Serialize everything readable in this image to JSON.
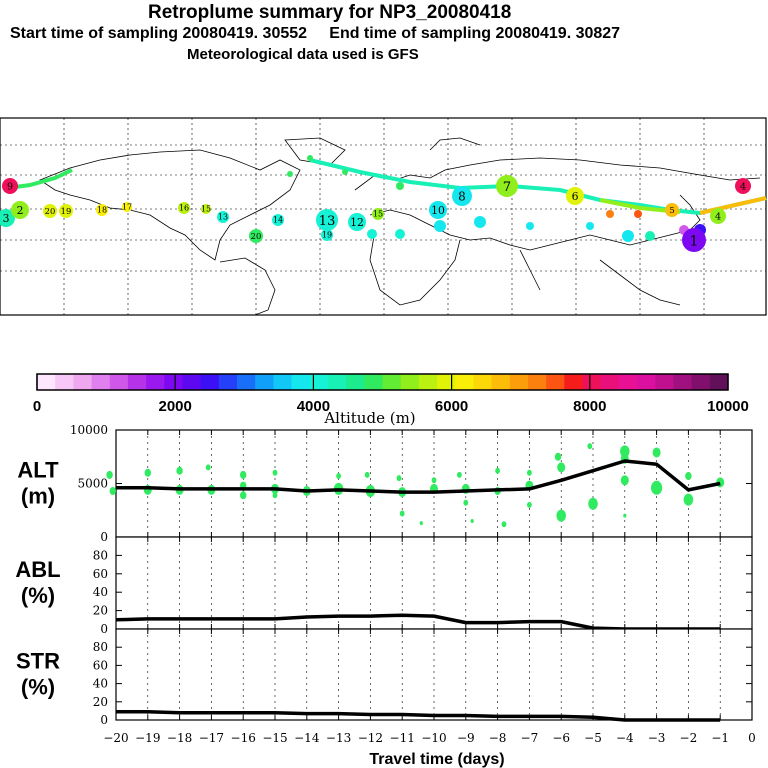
{
  "header": {
    "title": "Retroplume summary for NP3_20080418",
    "sampling": "Start time of sampling 20080419. 30552     End time of sampling 20080419. 30827",
    "met": "Meteorological data used is GFS"
  },
  "colorbar": {
    "ticks": [
      "0",
      "2000",
      "4000",
      "6000",
      "8000",
      "10000"
    ],
    "label": "Altitude (m)",
    "colors": [
      "#ffe6ff",
      "#f7c8f7",
      "#efa8f0",
      "#e080ee",
      "#d058e8",
      "#b632e8",
      "#9b18ee",
      "#7e08f2",
      "#5d08f0",
      "#3c10f4",
      "#2440f8",
      "#1870fa",
      "#10a0fa",
      "#12c8f6",
      "#14e8ee",
      "#16f2d6",
      "#18f0b6",
      "#1cec8e",
      "#30ea60",
      "#62ec34",
      "#90ee1c",
      "#bcf010",
      "#e0f208",
      "#f8ee08",
      "#fcd808",
      "#fcbc0a",
      "#fc9e0c",
      "#fc800e",
      "#fc5412",
      "#f61c1c",
      "#ee105a",
      "#ea107c",
      "#e81094",
      "#dc10a0",
      "#c01090",
      "#a0107e",
      "#80106c",
      "#62105a"
    ]
  },
  "map": {
    "labels": [
      {
        "t": "9",
        "c": "#ee105a"
      },
      {
        "t": "3",
        "c": "#18f0b6"
      },
      {
        "t": "2",
        "c": "#90ee1c"
      },
      {
        "t": "20",
        "c": "#e0f208"
      },
      {
        "t": "19",
        "c": "#e0f208"
      },
      {
        "t": "18",
        "c": "#f8ee08"
      },
      {
        "t": "17",
        "c": "#f8ee08"
      },
      {
        "t": "16",
        "c": "#bcf010"
      },
      {
        "t": "15",
        "c": "#bcf010"
      },
      {
        "t": "13",
        "c": "#16f2d6"
      },
      {
        "t": "20",
        "c": "#30ea60"
      },
      {
        "t": "14",
        "c": "#16f2d6"
      },
      {
        "t": "13",
        "c": "#16f2d6"
      },
      {
        "t": "12",
        "c": "#16f2d6"
      },
      {
        "t": "15",
        "c": "#90ee1c"
      },
      {
        "t": "19",
        "c": "#16f2d6"
      },
      {
        "t": "10",
        "c": "#14e8ee"
      },
      {
        "t": "8",
        "c": "#14e8ee"
      },
      {
        "t": "7",
        "c": "#90ee1c"
      },
      {
        "t": "6",
        "c": "#e0f208"
      },
      {
        "t": "5",
        "c": "#fcbc0a"
      },
      {
        "t": "4",
        "c": "#ee105a"
      },
      {
        "t": "4",
        "c": "#90ee1c"
      },
      {
        "t": "1",
        "c": "#7e08f2"
      }
    ]
  },
  "chart_data": [
    {
      "type": "line",
      "name": "ALT",
      "ylabel": "ALT",
      "yunit": "(m)",
      "ylim": [
        0,
        10000
      ],
      "yticks": [
        {
          "v": 0,
          "l": "0"
        },
        {
          "v": 5000,
          "l": "5000"
        },
        {
          "v": 10000,
          "l": "10000"
        }
      ],
      "x": [
        -20,
        -19,
        -18,
        -17,
        -16,
        -15,
        -14,
        -13,
        -12,
        -11,
        -10,
        -9,
        -8,
        -7,
        -6,
        -5,
        -4,
        -3,
        -2,
        -1
      ],
      "values": [
        4600,
        4600,
        4500,
        4500,
        4500,
        4500,
        4300,
        4400,
        4300,
        4200,
        4200,
        4300,
        4400,
        4500,
        5300,
        6200,
        7100,
        6800,
        4400,
        5000
      ],
      "scatter": [
        {
          "x": -20.2,
          "y": 5800,
          "s": 4
        },
        {
          "x": -20.1,
          "y": 4300,
          "s": 4
        },
        {
          "x": -19,
          "y": 6000,
          "s": 4
        },
        {
          "x": -19,
          "y": 4400,
          "s": 5
        },
        {
          "x": -18,
          "y": 6200,
          "s": 4
        },
        {
          "x": -18,
          "y": 4400,
          "s": 5
        },
        {
          "x": -17.1,
          "y": 6500,
          "s": 3
        },
        {
          "x": -17,
          "y": 4400,
          "s": 5
        },
        {
          "x": -16,
          "y": 5800,
          "s": 4
        },
        {
          "x": -16,
          "y": 4800,
          "s": 4
        },
        {
          "x": -16,
          "y": 3900,
          "s": 4
        },
        {
          "x": -15,
          "y": 6000,
          "s": 3
        },
        {
          "x": -15,
          "y": 4500,
          "s": 5
        },
        {
          "x": -15,
          "y": 3900,
          "s": 3
        },
        {
          "x": -14,
          "y": 4300,
          "s": 5
        },
        {
          "x": -13,
          "y": 5700,
          "s": 3
        },
        {
          "x": -13,
          "y": 4500,
          "s": 6
        },
        {
          "x": -12.1,
          "y": 5800,
          "s": 3
        },
        {
          "x": -12,
          "y": 4300,
          "s": 6
        },
        {
          "x": -11.1,
          "y": 5500,
          "s": 3
        },
        {
          "x": -11,
          "y": 4200,
          "s": 5
        },
        {
          "x": -11,
          "y": 2200,
          "s": 3
        },
        {
          "x": -10.4,
          "y": 1300,
          "s": 2
        },
        {
          "x": -10,
          "y": 4500,
          "s": 5
        },
        {
          "x": -10,
          "y": 5300,
          "s": 3
        },
        {
          "x": -9.2,
          "y": 5800,
          "s": 3
        },
        {
          "x": -9,
          "y": 4500,
          "s": 5
        },
        {
          "x": -9,
          "y": 3200,
          "s": 3
        },
        {
          "x": -8.8,
          "y": 1500,
          "s": 2
        },
        {
          "x": -8,
          "y": 6200,
          "s": 3
        },
        {
          "x": -8,
          "y": 4300,
          "s": 4
        },
        {
          "x": -7.8,
          "y": 1200,
          "s": 3
        },
        {
          "x": -7,
          "y": 6000,
          "s": 3
        },
        {
          "x": -7,
          "y": 4800,
          "s": 5
        },
        {
          "x": -7,
          "y": 3000,
          "s": 3
        },
        {
          "x": -6.1,
          "y": 7500,
          "s": 4
        },
        {
          "x": -6,
          "y": 6500,
          "s": 5
        },
        {
          "x": -6,
          "y": 2000,
          "s": 6
        },
        {
          "x": -5,
          "y": 3100,
          "s": 6
        },
        {
          "x": -5.1,
          "y": 8500,
          "s": 3
        },
        {
          "x": -4,
          "y": 8000,
          "s": 6
        },
        {
          "x": -4,
          "y": 7300,
          "s": 5
        },
        {
          "x": -4,
          "y": 5300,
          "s": 5
        },
        {
          "x": -4,
          "y": 2000,
          "s": 2
        },
        {
          "x": -3,
          "y": 7900,
          "s": 5
        },
        {
          "x": -3,
          "y": 4600,
          "s": 7
        },
        {
          "x": -2,
          "y": 5700,
          "s": 4
        },
        {
          "x": -2,
          "y": 3500,
          "s": 6
        },
        {
          "x": -1,
          "y": 5100,
          "s": 5
        }
      ]
    },
    {
      "type": "line",
      "name": "ABL",
      "ylabel": "ABL",
      "yunit": "(%)",
      "ylim": [
        0,
        100
      ],
      "yticks": [
        {
          "v": 0,
          "l": "0"
        },
        {
          "v": 20,
          "l": "20"
        },
        {
          "v": 40,
          "l": "40"
        },
        {
          "v": 60,
          "l": "60"
        },
        {
          "v": 80,
          "l": "80"
        }
      ],
      "x": [
        -20,
        -19,
        -18,
        -17,
        -16,
        -15,
        -14,
        -13,
        -12,
        -11,
        -10,
        -9,
        -8,
        -7,
        -6,
        -5,
        -4,
        -3,
        -2,
        -1
      ],
      "values": [
        10,
        11,
        11,
        11,
        11,
        11,
        13,
        14,
        14,
        15,
        14,
        7,
        7,
        8,
        8,
        1,
        0,
        0,
        0,
        0
      ]
    },
    {
      "type": "line",
      "name": "STR",
      "ylabel": "STR",
      "yunit": "(%)",
      "ylim": [
        0,
        100
      ],
      "yticks": [
        {
          "v": 0,
          "l": "0"
        },
        {
          "v": 20,
          "l": "20"
        },
        {
          "v": 40,
          "l": "40"
        },
        {
          "v": 60,
          "l": "60"
        },
        {
          "v": 80,
          "l": "80"
        }
      ],
      "x": [
        -20,
        -19,
        -18,
        -17,
        -16,
        -15,
        -14,
        -13,
        -12,
        -11,
        -10,
        -9,
        -8,
        -7,
        -6,
        -5,
        -4,
        -3,
        -2,
        -1
      ],
      "values": [
        9,
        9,
        8,
        8,
        8,
        8,
        7,
        7,
        6,
        6,
        5,
        5,
        4,
        4,
        4,
        3,
        0,
        0,
        0,
        0
      ]
    }
  ],
  "xaxis": {
    "xlabel": "Travel time (days)",
    "ticks": [
      {
        "v": -20,
        "l": "−20"
      },
      {
        "v": -19,
        "l": "−19"
      },
      {
        "v": -18,
        "l": "−18"
      },
      {
        "v": -17,
        "l": "−17"
      },
      {
        "v": -16,
        "l": "−16"
      },
      {
        "v": -15,
        "l": "−15"
      },
      {
        "v": -14,
        "l": "−14"
      },
      {
        "v": -13,
        "l": "−13"
      },
      {
        "v": -12,
        "l": "−12"
      },
      {
        "v": -11,
        "l": "−11"
      },
      {
        "v": -10,
        "l": "−10"
      },
      {
        "v": -9,
        "l": "−9"
      },
      {
        "v": -8,
        "l": "−8"
      },
      {
        "v": -7,
        "l": "−7"
      },
      {
        "v": -6,
        "l": "−6"
      },
      {
        "v": -5,
        "l": "−5"
      },
      {
        "v": -4,
        "l": "−4"
      },
      {
        "v": -3,
        "l": "−3"
      },
      {
        "v": -2,
        "l": "−2"
      },
      {
        "v": -1,
        "l": "−1"
      },
      {
        "v": 0,
        "l": "0"
      }
    ],
    "xlim": [
      -20,
      0
    ]
  }
}
